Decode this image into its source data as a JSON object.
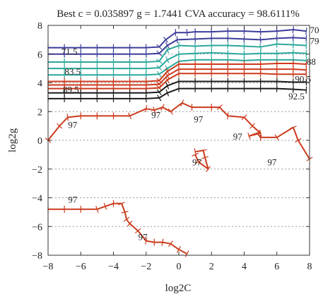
{
  "chart_data": {
    "type": "line",
    "title": "Best c = 0.035897 g = 1.7441 CVA accuracy = 98.6111%",
    "xlabel": "log2C",
    "ylabel": "log2g",
    "xlim": [
      -8,
      8
    ],
    "ylim": [
      -8,
      8
    ],
    "xticks": [
      -8,
      -6,
      -4,
      -2,
      0,
      2,
      4,
      6,
      8
    ],
    "yticks": [
      -8,
      -6,
      -4,
      -2,
      0,
      2,
      4,
      6,
      8
    ],
    "grid": "dotted horizontal",
    "series": [
      {
        "color": "#3c3c9a",
        "points": [
          [
            -8,
            6.45
          ],
          [
            -7,
            6.45
          ],
          [
            -6,
            6.45
          ],
          [
            -5,
            6.45
          ],
          [
            -4,
            6.45
          ],
          [
            -3,
            6.45
          ],
          [
            -2,
            6.45
          ],
          [
            -1.2,
            6.5
          ],
          [
            -0.8,
            7.0
          ],
          [
            -0.2,
            7.5
          ],
          [
            0.5,
            7.5
          ],
          [
            1,
            7.55
          ],
          [
            2,
            7.55
          ],
          [
            3,
            7.6
          ],
          [
            4,
            7.6
          ],
          [
            5,
            7.55
          ],
          [
            6,
            7.6
          ],
          [
            7,
            7.7
          ],
          [
            7.8,
            7.6
          ]
        ]
      },
      {
        "color": "#3c3c9a",
        "points": [
          [
            -8,
            6.0
          ],
          [
            -7,
            6.0
          ],
          [
            -6,
            6.0
          ],
          [
            -5,
            6.0
          ],
          [
            -4,
            6.0
          ],
          [
            -3,
            6.0
          ],
          [
            -2,
            6.0
          ],
          [
            -1.2,
            6.05
          ],
          [
            -0.7,
            6.6
          ],
          [
            -0.1,
            7.0
          ],
          [
            1,
            7.05
          ],
          [
            2,
            7.1
          ],
          [
            3,
            7.1
          ],
          [
            4,
            7.05
          ],
          [
            5,
            7.0
          ],
          [
            6,
            7.1
          ],
          [
            7,
            7.15
          ],
          [
            7.8,
            7.1
          ]
        ]
      },
      {
        "color": "#2aa89a",
        "points": [
          [
            -8,
            5.45
          ],
          [
            -7,
            5.45
          ],
          [
            -6,
            5.45
          ],
          [
            -5,
            5.45
          ],
          [
            -4,
            5.45
          ],
          [
            -3,
            5.45
          ],
          [
            -2,
            5.45
          ],
          [
            -1.2,
            5.5
          ],
          [
            -0.7,
            6.3
          ],
          [
            0,
            6.6
          ],
          [
            1,
            6.55
          ],
          [
            2,
            6.6
          ],
          [
            3,
            6.6
          ],
          [
            4,
            6.55
          ],
          [
            5,
            6.5
          ],
          [
            6,
            6.7
          ],
          [
            7,
            6.65
          ],
          [
            7.8,
            6.6
          ]
        ]
      },
      {
        "color": "#2aa89a",
        "points": [
          [
            -8,
            5.0
          ],
          [
            -7,
            5.0
          ],
          [
            -6,
            5.0
          ],
          [
            -5,
            5.0
          ],
          [
            -4,
            5.0
          ],
          [
            -3,
            5.0
          ],
          [
            -2,
            5.0
          ],
          [
            -1.2,
            5.05
          ],
          [
            -0.7,
            5.6
          ],
          [
            0,
            6.0
          ],
          [
            1,
            6.05
          ],
          [
            2,
            6.1
          ],
          [
            3,
            6.05
          ],
          [
            4,
            6.0
          ],
          [
            5,
            6.05
          ],
          [
            6,
            6.05
          ],
          [
            7,
            6.1
          ],
          [
            7.8,
            6.05
          ]
        ]
      },
      {
        "color": "#2aa89a",
        "points": [
          [
            -8,
            4.55
          ],
          [
            -7,
            4.55
          ],
          [
            -6,
            4.55
          ],
          [
            -5,
            4.55
          ],
          [
            -4,
            4.55
          ],
          [
            -3,
            4.55
          ],
          [
            -2,
            4.55
          ],
          [
            -1.2,
            4.6
          ],
          [
            -0.7,
            5.0
          ],
          [
            0,
            5.5
          ],
          [
            1,
            5.6
          ],
          [
            2,
            5.6
          ],
          [
            3,
            5.6
          ],
          [
            4,
            5.55
          ],
          [
            5,
            5.6
          ],
          [
            6,
            5.6
          ],
          [
            7,
            5.6
          ],
          [
            7.8,
            5.55
          ]
        ]
      },
      {
        "color": "#cc3a1c",
        "points": [
          [
            -8,
            4.1
          ],
          [
            -7,
            4.1
          ],
          [
            -6,
            4.1
          ],
          [
            -5,
            4.1
          ],
          [
            -4,
            4.1
          ],
          [
            -3,
            4.1
          ],
          [
            -2,
            4.1
          ],
          [
            -1.2,
            4.15
          ],
          [
            -0.7,
            4.8
          ],
          [
            0,
            5.3
          ],
          [
            1,
            5.3
          ],
          [
            2,
            5.3
          ],
          [
            3,
            5.3
          ],
          [
            4,
            5.3
          ],
          [
            5,
            5.3
          ],
          [
            6,
            5.35
          ],
          [
            7,
            5.35
          ],
          [
            7.8,
            5.3
          ]
        ]
      },
      {
        "color": "#cc3a1c",
        "points": [
          [
            -8,
            3.85
          ],
          [
            -7,
            3.85
          ],
          [
            -6,
            3.85
          ],
          [
            -5,
            3.85
          ],
          [
            -4,
            3.85
          ],
          [
            -3,
            3.85
          ],
          [
            -2,
            3.85
          ],
          [
            -1.2,
            3.9
          ],
          [
            -0.7,
            4.5
          ],
          [
            0,
            4.95
          ],
          [
            1,
            4.95
          ],
          [
            2,
            4.95
          ],
          [
            3,
            4.95
          ],
          [
            4,
            4.95
          ],
          [
            5,
            4.95
          ],
          [
            6,
            4.95
          ],
          [
            7,
            4.95
          ],
          [
            7.8,
            4.9
          ]
        ]
      },
      {
        "color": "#cc3a1c",
        "points": [
          [
            -8,
            3.6
          ],
          [
            -7,
            3.6
          ],
          [
            -6,
            3.6
          ],
          [
            -5,
            3.6
          ],
          [
            -4,
            3.6
          ],
          [
            -3,
            3.6
          ],
          [
            -2,
            3.6
          ],
          [
            -1.2,
            3.65
          ],
          [
            -0.7,
            4.2
          ],
          [
            0,
            4.65
          ],
          [
            1,
            4.65
          ],
          [
            2,
            4.65
          ],
          [
            3,
            4.65
          ],
          [
            4,
            4.65
          ],
          [
            5,
            4.65
          ],
          [
            6,
            4.6
          ],
          [
            7,
            4.6
          ],
          [
            7.8,
            4.6
          ]
        ]
      },
      {
        "color": "#1a1a1a",
        "points": [
          [
            -8,
            3.3
          ],
          [
            -7,
            3.3
          ],
          [
            -6,
            3.3
          ],
          [
            -5,
            3.3
          ],
          [
            -4,
            3.3
          ],
          [
            -3,
            3.3
          ],
          [
            -2,
            3.3
          ],
          [
            -1.2,
            3.35
          ],
          [
            -0.7,
            3.8
          ],
          [
            0,
            4.1
          ],
          [
            1,
            4.1
          ],
          [
            2,
            4.1
          ],
          [
            3,
            4.1
          ],
          [
            4,
            4.1
          ],
          [
            5,
            4.1
          ],
          [
            6,
            4.1
          ],
          [
            7,
            4.05
          ],
          [
            7.8,
            4.05
          ]
        ]
      },
      {
        "color": "#1a1a1a",
        "points": [
          [
            -8,
            2.9
          ],
          [
            -7,
            2.9
          ],
          [
            -6,
            2.9
          ],
          [
            -5,
            2.9
          ],
          [
            -4,
            2.9
          ],
          [
            -3,
            2.9
          ],
          [
            -2,
            2.9
          ],
          [
            -1.2,
            2.95
          ],
          [
            -0.7,
            3.3
          ],
          [
            0,
            3.6
          ],
          [
            1,
            3.6
          ],
          [
            2,
            3.6
          ],
          [
            3,
            3.6
          ],
          [
            4,
            3.6
          ],
          [
            5,
            3.6
          ],
          [
            6,
            3.6
          ],
          [
            7,
            3.55
          ],
          [
            7.8,
            3.5
          ]
        ]
      },
      {
        "color": "#cc3a1c",
        "points": [
          [
            -8,
            0
          ],
          [
            -7.3,
            1.0
          ],
          [
            -6.8,
            1.6
          ],
          [
            -6,
            1.7
          ],
          [
            -5,
            1.7
          ],
          [
            -4,
            1.7
          ],
          [
            -3,
            1.7
          ],
          [
            -2,
            2.2
          ],
          [
            -1.5,
            2.1
          ],
          [
            -1,
            2.3
          ],
          [
            -0.5,
            2.0
          ],
          [
            0.2,
            2.6
          ],
          [
            0.8,
            2.3
          ],
          [
            2,
            2.3
          ],
          [
            2.5,
            2.3
          ],
          [
            3,
            1.7
          ],
          [
            4,
            1.6
          ],
          [
            4.5,
            1.0
          ],
          [
            5,
            0.5
          ],
          [
            4.3,
            0.3
          ],
          [
            4.8,
            0.5
          ],
          [
            5,
            0.2
          ],
          [
            6,
            0.2
          ],
          [
            7,
            0.9
          ],
          [
            7.3,
            0.0
          ],
          [
            8,
            -1.3
          ]
        ]
      },
      {
        "color": "#cc3a1c",
        "points": [
          [
            1,
            -0.8
          ],
          [
            1.5,
            -0.7
          ],
          [
            1.6,
            -1.2
          ],
          [
            1.8,
            -2.0
          ],
          [
            1.2,
            -1.5
          ],
          [
            1.0,
            -1.0
          ]
        ]
      },
      {
        "color": "#cc3a1c",
        "points": [
          [
            -8,
            -4.8
          ],
          [
            -7,
            -4.8
          ],
          [
            -6,
            -4.8
          ],
          [
            -5,
            -4.8
          ],
          [
            -4.5,
            -4.6
          ],
          [
            -4,
            -4.4
          ],
          [
            -3.5,
            -4.4
          ],
          [
            -3.3,
            -5.0
          ],
          [
            -3.2,
            -5.5
          ],
          [
            -3,
            -5.8
          ],
          [
            -2.5,
            -6.3
          ],
          [
            -2,
            -7.0
          ],
          [
            -1.5,
            -7.1
          ],
          [
            -1,
            -7.1
          ],
          [
            -0.5,
            -7.2
          ],
          [
            0,
            -7.6
          ],
          [
            0.5,
            -7.9
          ]
        ]
      }
    ],
    "contour_labels": [
      {
        "text": "70",
        "x": 8.3,
        "y": 7.7
      },
      {
        "text": "79",
        "x": 8.3,
        "y": 6.95
      },
      {
        "text": "71.5",
        "x": -6.7,
        "y": 6.2
      },
      {
        "text": "88",
        "x": 8.1,
        "y": 5.5
      },
      {
        "text": "83.5",
        "x": -6.5,
        "y": 4.8
      },
      {
        "text": "90.5",
        "x": 7.6,
        "y": 4.3
      },
      {
        "text": "89.5",
        "x": -6.6,
        "y": 3.55
      },
      {
        "text": "92.5",
        "x": 7.2,
        "y": 3.1
      },
      {
        "text": "97",
        "x": -6.5,
        "y": 1.1
      },
      {
        "text": "97",
        "x": -1.4,
        "y": 1.8
      },
      {
        "text": "97",
        "x": 1.2,
        "y": 1.5
      },
      {
        "text": "97",
        "x": 3.6,
        "y": 0.3
      },
      {
        "text": "97",
        "x": 1.1,
        "y": -1.5
      },
      {
        "text": "97",
        "x": 5.7,
        "y": -1.5
      },
      {
        "text": "97",
        "x": -6.5,
        "y": -4.1
      },
      {
        "text": "97",
        "x": -2.2,
        "y": -6.7
      }
    ]
  }
}
